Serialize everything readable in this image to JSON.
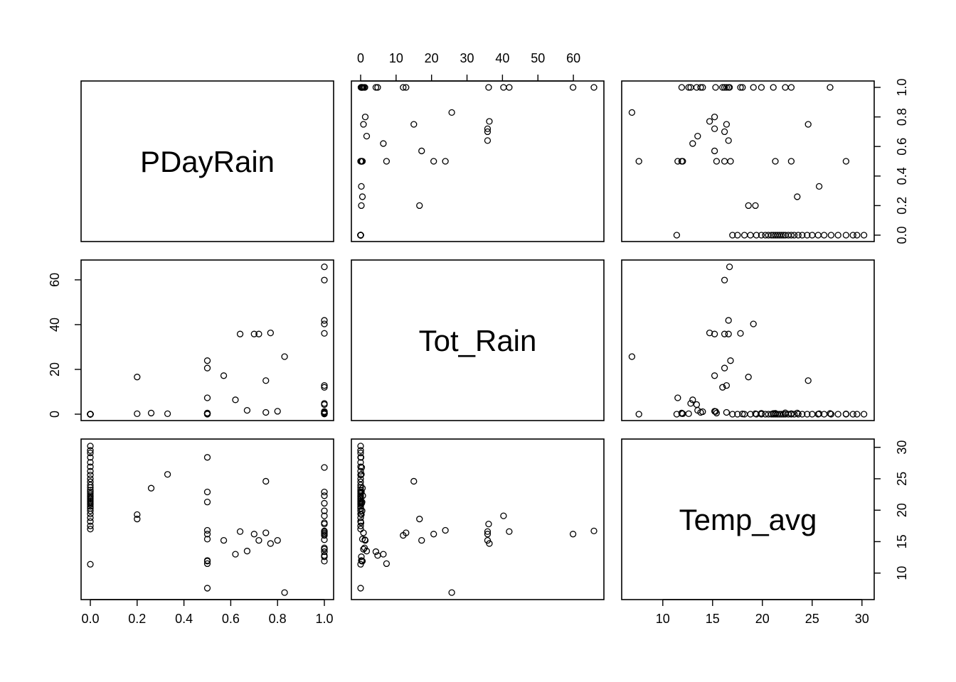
{
  "chart_data": {
    "type": "scatter",
    "matrix": "pairs",
    "variables": [
      "PDayRain",
      "Tot_Rain",
      "Temp_avg"
    ],
    "ranges": {
      "PDayRain": [
        0,
        1
      ],
      "Tot_Rain": [
        0,
        66
      ],
      "Temp_avg": [
        6.8,
        30.3
      ]
    },
    "ticks": {
      "PDayRain": [
        "0.0",
        "0.2",
        "0.4",
        "0.6",
        "0.8",
        "1.0"
      ],
      "Tot_Rain": [
        "0",
        "10",
        "20",
        "30",
        "40",
        "50",
        "60"
      ],
      "Tot_Rain_left": [
        "0",
        "20",
        "40",
        "60"
      ],
      "Temp_avg": [
        "10",
        "15",
        "20",
        "25",
        "30"
      ]
    },
    "grid": false,
    "legend": "none",
    "observations": [
      [
        0,
        0,
        11.4
      ],
      [
        0,
        0,
        17.0
      ],
      [
        0,
        0,
        17.5
      ],
      [
        0,
        0,
        18.2
      ],
      [
        0,
        0,
        18.8
      ],
      [
        0,
        0,
        19.4
      ],
      [
        0,
        0,
        19.9
      ],
      [
        0,
        0,
        20.3
      ],
      [
        0,
        0,
        20.6
      ],
      [
        0,
        0,
        20.9
      ],
      [
        0,
        0,
        21.1
      ],
      [
        0,
        0,
        21.3
      ],
      [
        0,
        0,
        21.5
      ],
      [
        0,
        0,
        21.7
      ],
      [
        0,
        0,
        21.9
      ],
      [
        0,
        0,
        22.1
      ],
      [
        0,
        0,
        22.3
      ],
      [
        0,
        0,
        22.6
      ],
      [
        0,
        0,
        22.9
      ],
      [
        0,
        0,
        23.2
      ],
      [
        0,
        0,
        23.6
      ],
      [
        0,
        0,
        24.0
      ],
      [
        0,
        0,
        24.5
      ],
      [
        0,
        0,
        25.0
      ],
      [
        0,
        0,
        25.6
      ],
      [
        0,
        0,
        26.2
      ],
      [
        0,
        0,
        26.9
      ],
      [
        0,
        0,
        27.6
      ],
      [
        0,
        0,
        28.4
      ],
      [
        0,
        0,
        29.1
      ],
      [
        0,
        0,
        29.5
      ],
      [
        0,
        0,
        30.2
      ],
      [
        0.2,
        16.6,
        18.6
      ],
      [
        0.2,
        0.2,
        19.3
      ],
      [
        0.26,
        0.5,
        23.5
      ],
      [
        0.33,
        0.2,
        25.7
      ],
      [
        0.5,
        7.3,
        11.5
      ],
      [
        0.5,
        0.3,
        11.9
      ],
      [
        0.5,
        0.2,
        12.0
      ],
      [
        0.5,
        0.5,
        15.4
      ],
      [
        0.5,
        20.6,
        16.2
      ],
      [
        0.5,
        23.9,
        16.8
      ],
      [
        0.5,
        0.4,
        21.3
      ],
      [
        0.5,
        0.2,
        22.9
      ],
      [
        0.5,
        0.1,
        28.4
      ],
      [
        0.5,
        0,
        7.6
      ],
      [
        0.57,
        17.2,
        15.2
      ],
      [
        0.62,
        6.4,
        13.0
      ],
      [
        0.64,
        35.8,
        16.6
      ],
      [
        0.67,
        1.7,
        13.5
      ],
      [
        0.7,
        35.8,
        16.2
      ],
      [
        0.72,
        35.8,
        15.2
      ],
      [
        0.75,
        15.0,
        24.6
      ],
      [
        0.75,
        0.8,
        16.4
      ],
      [
        0.77,
        36.3,
        14.7
      ],
      [
        0.8,
        1.3,
        15.2
      ],
      [
        0.83,
        25.7,
        6.9
      ],
      [
        1,
        65.8,
        16.7
      ],
      [
        1,
        59.9,
        16.2
      ],
      [
        1,
        41.9,
        16.6
      ],
      [
        1,
        40.3,
        19.1
      ],
      [
        1,
        36.1,
        17.8
      ],
      [
        1,
        12.8,
        16.4
      ],
      [
        1,
        12.0,
        16.0
      ],
      [
        1,
        4.8,
        12.8
      ],
      [
        1,
        4.3,
        13.4
      ],
      [
        1,
        1.2,
        15.3
      ],
      [
        1,
        1.1,
        14.0
      ],
      [
        1,
        0.8,
        13.8
      ],
      [
        1,
        0.5,
        11.9
      ],
      [
        1,
        0.2,
        12.6
      ],
      [
        1,
        0.1,
        18.0
      ],
      [
        1,
        0.4,
        19.9
      ],
      [
        1,
        0.3,
        21.1
      ],
      [
        1,
        0.6,
        22.3
      ],
      [
        1,
        0.2,
        22.9
      ],
      [
        1,
        0.3,
        26.8
      ]
    ]
  }
}
